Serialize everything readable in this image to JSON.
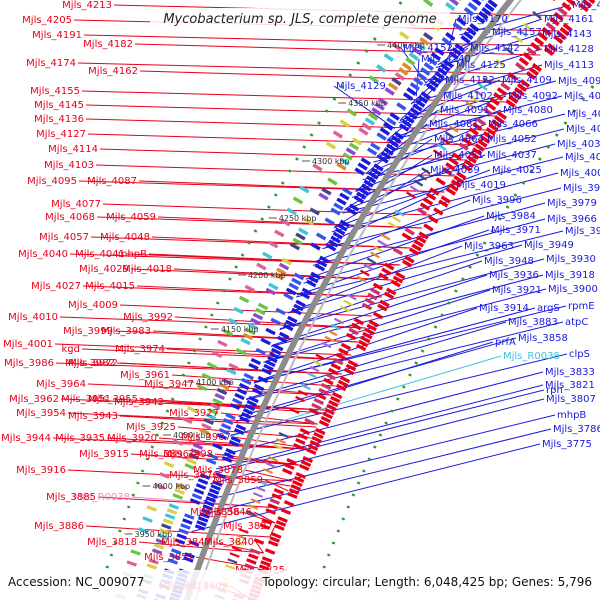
{
  "map": {
    "title": "Mycobacterium sp. JLS, complete genome",
    "accession": "Accession: NC_009077",
    "topology": "Topology: circular; Length: 6,048,425 bp; Genes: 5,796",
    "colors": {
      "reverse_strand": "#e8001a",
      "forward_strand": "#1a1adc",
      "rna_gene": "#3fc4d8",
      "pseudo_gene": "#f08cc8",
      "backbone": "#8c8c8c",
      "tick_green": "#2e9a2e"
    },
    "kbp_ticks": [
      "4400 kbp",
      "4350 kbp",
      "4300 kbp",
      "4250 kbp",
      "4200 kbp",
      "4150 kbp",
      "4100 kbp",
      "4050 kbp",
      "4000 kbp",
      "3950 kbp"
    ],
    "left_labels": [
      {
        "text": "Mjls_4213",
        "type": "gene"
      },
      {
        "text": "Mjls_4205",
        "type": "gene"
      },
      {
        "text": "Mjls_4191",
        "type": "gene"
      },
      {
        "text": "Mjls_4182",
        "type": "gene"
      },
      {
        "text": "Mjls_4174",
        "type": "gene"
      },
      {
        "text": "Mjls_4162",
        "type": "gene"
      },
      {
        "text": "Mjls_4155",
        "type": "gene"
      },
      {
        "text": "Mjls_4145",
        "type": "gene"
      },
      {
        "text": "Mjls_4136",
        "type": "gene"
      },
      {
        "text": "Mjls_4127",
        "type": "gene"
      },
      {
        "text": "Mjls_4114",
        "type": "gene"
      },
      {
        "text": "Mjls_4103",
        "type": "gene"
      },
      {
        "text": "Mjls_4095",
        "type": "gene"
      },
      {
        "text": "Mjls_4087",
        "type": "gene"
      },
      {
        "text": "Mjls_4077",
        "type": "gene"
      },
      {
        "text": "Mjls_4068",
        "type": "gene"
      },
      {
        "text": "Mjls_4059",
        "type": "gene"
      },
      {
        "text": "Mjls_4057",
        "type": "gene"
      },
      {
        "text": "Mjls_4048",
        "type": "gene"
      },
      {
        "text": "Mjls_4041",
        "type": "gene"
      },
      {
        "text": "mhpB",
        "type": "gene"
      },
      {
        "text": "Mjls_4040",
        "type": "gene"
      },
      {
        "text": "Mjls_4029",
        "type": "gene"
      },
      {
        "text": "Mjls_4018",
        "type": "gene"
      },
      {
        "text": "Mjls_4027",
        "type": "gene"
      },
      {
        "text": "Mjls_4015",
        "type": "gene"
      },
      {
        "text": "Mjls_4009",
        "type": "gene"
      },
      {
        "text": "Mjls_3992",
        "type": "gene"
      },
      {
        "text": "Mjls_4010",
        "type": "gene"
      },
      {
        "text": "Mjls_3999",
        "type": "gene"
      },
      {
        "text": "Mjls_3983",
        "type": "gene"
      },
      {
        "text": "Mjls_4001",
        "type": "gene"
      },
      {
        "text": "kgd",
        "type": "gene"
      },
      {
        "text": "Mjls_3974",
        "type": "gene"
      },
      {
        "text": "Mjls_3982",
        "type": "gene"
      },
      {
        "text": "Mjls_3986",
        "type": "gene"
      },
      {
        "text": "Mjls_3972",
        "type": "gene"
      },
      {
        "text": "Mjls_3961",
        "type": "gene"
      },
      {
        "text": "Mjls_3947",
        "type": "gene"
      },
      {
        "text": "Mjls_3964",
        "type": "gene"
      },
      {
        "text": "Mjls_3955",
        "type": "gene"
      },
      {
        "text": "Mjls_3962",
        "type": "gene"
      },
      {
        "text": "Mjls_3951",
        "type": "gene"
      },
      {
        "text": "Mjls_3942",
        "type": "gene"
      },
      {
        "text": "Mjls_3927",
        "type": "gene"
      },
      {
        "text": "Mjls_3954",
        "type": "gene"
      },
      {
        "text": "Mjls_3943",
        "type": "gene"
      },
      {
        "text": "Mjls_3925",
        "type": "gene"
      },
      {
        "text": "Mjls_3907",
        "type": "gene"
      },
      {
        "text": "Mjls_3944",
        "type": "gene"
      },
      {
        "text": "Mjls_3935",
        "type": "gene"
      },
      {
        "text": "Mjls_3920",
        "type": "gene"
      },
      {
        "text": "Mjls_3898",
        "type": "gene"
      },
      {
        "text": "Mjls_3915",
        "type": "gene"
      },
      {
        "text": "Mjls_3896",
        "type": "gene"
      },
      {
        "text": "Mjls_3878",
        "type": "gene"
      },
      {
        "text": "Mjls_3916",
        "type": "gene"
      },
      {
        "text": "Mjls_3876",
        "type": "gene"
      },
      {
        "text": "Mjls_3859",
        "type": "gene"
      },
      {
        "text": "Mjls_R0038",
        "type": "pseudo"
      },
      {
        "text": "Mjls_3885",
        "type": "gene"
      },
      {
        "text": "Mjls_3856",
        "type": "gene"
      },
      {
        "text": "Mjls_3846",
        "type": "gene"
      },
      {
        "text": "Mjls_3886",
        "type": "gene"
      },
      {
        "text": "Mjls_3827",
        "type": "gene"
      },
      {
        "text": "Mjls_3847",
        "type": "gene"
      },
      {
        "text": "Mjls_3840",
        "type": "gene"
      },
      {
        "text": "Mjls_3818",
        "type": "gene"
      },
      {
        "text": "Mjls_3851",
        "type": "gene"
      },
      {
        "text": "Mjls_3825",
        "type": "gene"
      },
      {
        "text": "Mjls_3802",
        "type": "gene"
      },
      {
        "text": "Mjls_3814",
        "type": "gene"
      },
      {
        "text": "Mjls_3813",
        "type": "gene"
      }
    ],
    "right_labels": [
      {
        "text": "Mjls_4171",
        "type": "gene"
      },
      {
        "text": "Mjls_4170",
        "type": "gene"
      },
      {
        "text": "Mjls_4161",
        "type": "gene"
      },
      {
        "text": "Mjls_4157",
        "type": "gene"
      },
      {
        "text": "Mjls_4143",
        "type": "gene"
      },
      {
        "text": "Mjls_4152",
        "type": "gene"
      },
      {
        "text": "Mjls_4142",
        "type": "gene"
      },
      {
        "text": "Mjls_4128",
        "type": "gene"
      },
      {
        "text": "Mjls_4140",
        "type": "gene"
      },
      {
        "text": "Mjls_4113",
        "type": "gene"
      },
      {
        "text": "Mjls_4125",
        "type": "gene"
      },
      {
        "text": "Mjls_4122",
        "type": "gene"
      },
      {
        "text": "Mjls_4109",
        "type": "gene"
      },
      {
        "text": "Mjls_4096",
        "type": "gene"
      },
      {
        "text": "Mjls_4129",
        "type": "gene"
      },
      {
        "text": "Mjls_4102",
        "type": "gene"
      },
      {
        "text": "Mjls_4092",
        "type": "gene"
      },
      {
        "text": "Mjls_4082",
        "type": "gene"
      },
      {
        "text": "Mjls_4091",
        "type": "gene"
      },
      {
        "text": "Mjls_4080",
        "type": "gene"
      },
      {
        "text": "Mjls_4062",
        "type": "gene"
      },
      {
        "text": "Mjls_4081",
        "type": "gene"
      },
      {
        "text": "Mjls_4066",
        "type": "gene"
      },
      {
        "text": "Mjls_4047",
        "type": "gene"
      },
      {
        "text": "Mjls_4064",
        "type": "gene"
      },
      {
        "text": "Mjls_4052",
        "type": "gene"
      },
      {
        "text": "Mjls_4032",
        "type": "gene"
      },
      {
        "text": "Mjls_4051",
        "type": "gene"
      },
      {
        "text": "Mjls_4037",
        "type": "gene"
      },
      {
        "text": "Mjls_4020",
        "type": "gene"
      },
      {
        "text": "Mjls_4039",
        "type": "gene"
      },
      {
        "text": "Mjls_4025",
        "type": "gene"
      },
      {
        "text": "Mjls_4005",
        "type": "gene"
      },
      {
        "text": "Mjls_4019",
        "type": "gene"
      },
      {
        "text": "Mjls_3988",
        "type": "gene"
      },
      {
        "text": "Mjls_3996",
        "type": "gene"
      },
      {
        "text": "Mjls_3979",
        "type": "gene"
      },
      {
        "text": "Mjls_3984",
        "type": "gene"
      },
      {
        "text": "Mjls_3966",
        "type": "gene"
      },
      {
        "text": "Mjls_3971",
        "type": "gene"
      },
      {
        "text": "Mjls_3952",
        "type": "gene"
      },
      {
        "text": "Mjls_3963",
        "type": "gene"
      },
      {
        "text": "Mjls_3949",
        "type": "gene"
      },
      {
        "text": "Mjls_3948",
        "type": "gene"
      },
      {
        "text": "Mjls_3930",
        "type": "gene"
      },
      {
        "text": "Mjls_3936",
        "type": "gene"
      },
      {
        "text": "Mjls_3918",
        "type": "gene"
      },
      {
        "text": "Mjls_3921",
        "type": "gene"
      },
      {
        "text": "Mjls_3900",
        "type": "gene"
      },
      {
        "text": "Mjls_3914",
        "type": "gene"
      },
      {
        "text": "argS",
        "type": "gene"
      },
      {
        "text": "rpmE",
        "type": "gene"
      },
      {
        "text": "Mjls_3883",
        "type": "gene"
      },
      {
        "text": "atpC",
        "type": "gene"
      },
      {
        "text": "Mjls_3858",
        "type": "gene"
      },
      {
        "text": "prfA",
        "type": "gene"
      },
      {
        "text": "Mjls_R0038",
        "type": "rna"
      },
      {
        "text": "clpS",
        "type": "gene"
      },
      {
        "text": "rph",
        "type": "gene"
      },
      {
        "text": "Mjls_3833",
        "type": "gene"
      },
      {
        "text": "Mjls_3821",
        "type": "gene"
      },
      {
        "text": "Mjls_3807",
        "type": "gene"
      },
      {
        "text": "mhpB",
        "type": "gene"
      },
      {
        "text": "Mjls_3786",
        "type": "gene"
      },
      {
        "text": "Mjls_3775",
        "type": "gene"
      }
    ]
  }
}
